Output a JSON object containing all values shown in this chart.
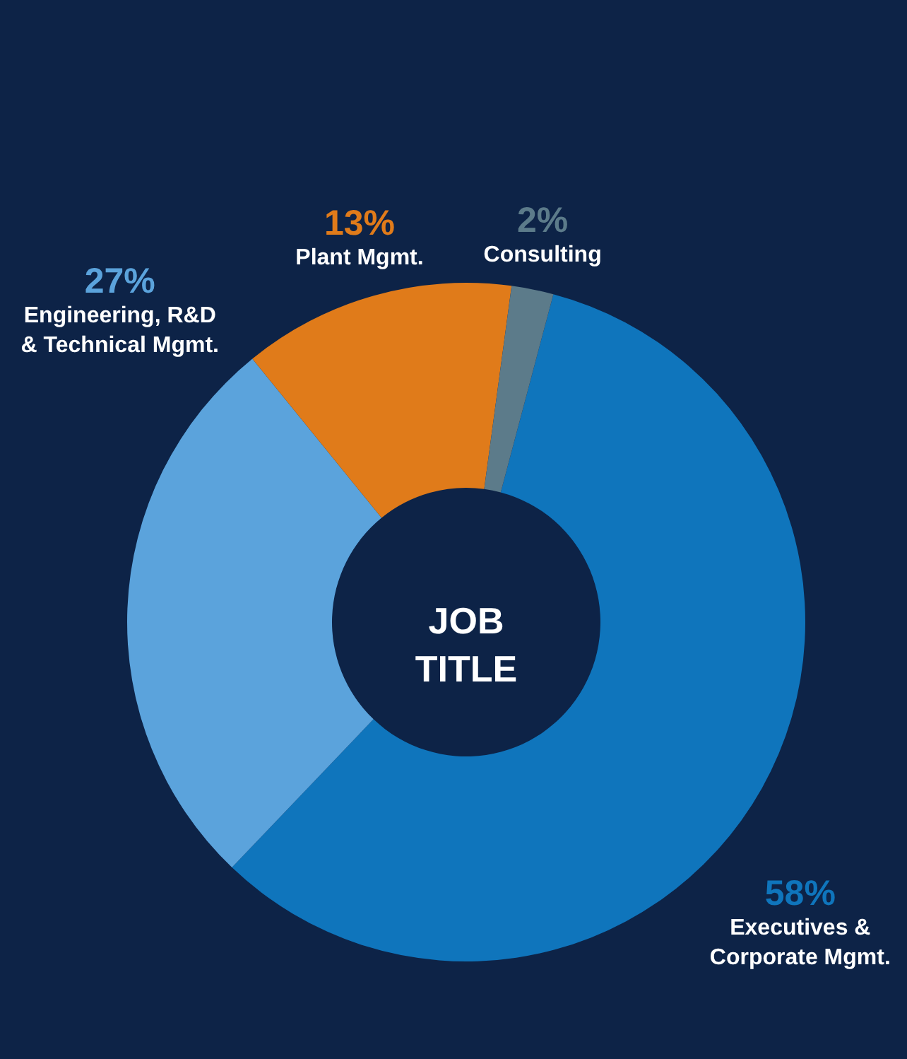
{
  "chart_data": {
    "type": "donut",
    "title": "JOB TITLE",
    "categories": [
      "Executives & Corporate Mgmt.",
      "Engineering, R&D & Technical Mgmt.",
      "Plant Mgmt.",
      "Consulting"
    ],
    "values": [
      58,
      27,
      13,
      2
    ],
    "value_labels": [
      "58%",
      "27%",
      "13%",
      "2%"
    ],
    "colors": [
      "#0f75bc",
      "#5ba3dc",
      "#e07b1a",
      "#5c7b8a"
    ]
  }
}
